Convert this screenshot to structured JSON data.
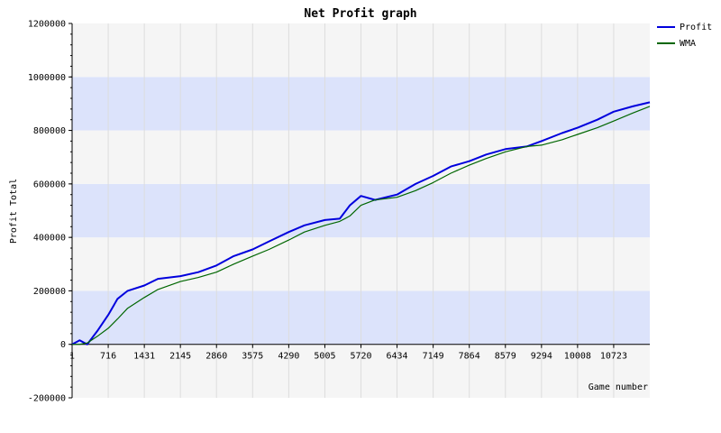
{
  "chart_data": {
    "type": "line",
    "title": "Net Profit graph",
    "ylabel": "Profit Total",
    "xlabel": "Game number",
    "xlim": [
      1,
      11438
    ],
    "ylim": [
      -200000,
      1200000
    ],
    "x_ticks": [
      "1",
      "716",
      "1431",
      "2145",
      "2860",
      "3575",
      "4290",
      "5005",
      "5720",
      "6434",
      "7149",
      "7864",
      "8579",
      "9294",
      "10008",
      "10723"
    ],
    "y_ticks": [
      "-200000",
      "0",
      "200000",
      "400000",
      "600000",
      "800000",
      "1000000",
      "1200000"
    ],
    "grid": true,
    "legend_position": "top-right",
    "colors": {
      "Profit": "#0000dd",
      "WMA": "#006600",
      "band_light": "#f5f5f5",
      "band_blue": "#dce3fb"
    },
    "series": [
      {
        "name": "Profit",
        "x": [
          1,
          150,
          300,
          500,
          716,
          900,
          1100,
          1431,
          1700,
          2145,
          2500,
          2860,
          3200,
          3575,
          3900,
          4290,
          4600,
          5005,
          5300,
          5500,
          5720,
          6000,
          6434,
          6800,
          7149,
          7500,
          7864,
          8200,
          8579,
          9000,
          9294,
          9700,
          10008,
          10400,
          10723,
          11100,
          11438
        ],
        "y": [
          0,
          15000,
          0,
          50000,
          110000,
          170000,
          200000,
          220000,
          245000,
          255000,
          270000,
          295000,
          330000,
          355000,
          385000,
          420000,
          445000,
          465000,
          470000,
          520000,
          555000,
          540000,
          560000,
          600000,
          630000,
          665000,
          685000,
          710000,
          730000,
          740000,
          760000,
          790000,
          810000,
          840000,
          870000,
          890000,
          905000
        ]
      },
      {
        "name": "WMA",
        "x": [
          1,
          150,
          300,
          500,
          716,
          900,
          1100,
          1431,
          1700,
          2145,
          2500,
          2860,
          3200,
          3575,
          3900,
          4290,
          4600,
          5005,
          5300,
          5500,
          5720,
          6000,
          6434,
          6800,
          7149,
          7500,
          7864,
          8200,
          8579,
          9000,
          9294,
          9700,
          10008,
          10400,
          10723,
          11100,
          11438
        ],
        "y": [
          0,
          0,
          5000,
          30000,
          60000,
          95000,
          135000,
          175000,
          205000,
          235000,
          250000,
          270000,
          300000,
          330000,
          355000,
          390000,
          420000,
          445000,
          460000,
          480000,
          520000,
          540000,
          550000,
          575000,
          605000,
          640000,
          670000,
          695000,
          720000,
          740000,
          745000,
          765000,
          785000,
          810000,
          835000,
          865000,
          890000
        ]
      }
    ]
  }
}
